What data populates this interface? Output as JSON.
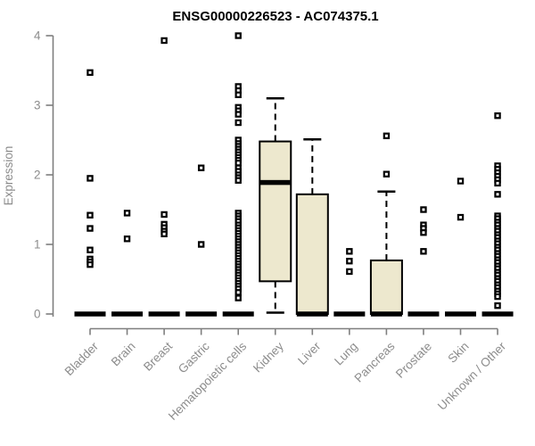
{
  "chart_data": {
    "type": "boxplot",
    "title": "ENSG00000226523 - AC074375.1",
    "xlabel": "",
    "ylabel": "Expression",
    "ylim": [
      0,
      4
    ],
    "yticks": [
      0,
      1,
      2,
      3,
      4
    ],
    "grid": false,
    "legend": "none",
    "marker_style": "open-square",
    "box_fill_color": "#ede8ce",
    "box_border_color": "#000000",
    "axis_color": "#7f7f7f",
    "label_color": "#8c8c8c",
    "title_color": "#000000",
    "categories": [
      "Bladder",
      "Brain",
      "Breast",
      "Gastric",
      "Hematopoietic cells",
      "Kidney",
      "Liver",
      "Lung",
      "Pancreas",
      "Prostate",
      "Skin",
      "Unknown / Other"
    ],
    "boxes": [
      {
        "category": "Bladder",
        "q1": 0,
        "median": 0,
        "q3": 0,
        "whisker_low": 0,
        "whisker_high": 0,
        "outliers": [
          3.47,
          1.95,
          1.42,
          1.23,
          0.92,
          0.79,
          0.75,
          0.71
        ]
      },
      {
        "category": "Brain",
        "q1": 0,
        "median": 0,
        "q3": 0,
        "whisker_low": 0,
        "whisker_high": 0,
        "outliers": [
          1.45,
          1.08
        ]
      },
      {
        "category": "Breast",
        "q1": 0,
        "median": 0,
        "q3": 0,
        "whisker_low": 0,
        "whisker_high": 0,
        "outliers": [
          3.93,
          1.43,
          1.29,
          1.24,
          1.19,
          1.15
        ]
      },
      {
        "category": "Gastric",
        "q1": 0,
        "median": 0,
        "q3": 0,
        "whisker_low": 0,
        "whisker_high": 0,
        "outliers": [
          2.1,
          1.0
        ]
      },
      {
        "category": "Hematopoietic cells",
        "q1": 0,
        "median": 0,
        "q3": 0,
        "whisker_low": 0,
        "whisker_high": 0,
        "outliers": [
          4.0,
          3.27,
          3.21,
          3.15,
          2.97,
          2.92,
          2.87,
          2.75,
          2.5,
          2.45,
          2.41,
          2.37,
          2.33,
          2.29,
          2.25,
          2.21,
          2.17,
          2.1,
          2.05,
          2.0,
          1.96,
          1.92,
          1.45,
          1.41,
          1.37,
          1.33,
          1.28,
          1.24,
          1.2,
          1.16,
          1.12,
          1.08,
          1.04,
          1.0,
          0.96,
          0.92,
          0.88,
          0.84,
          0.8,
          0.76,
          0.72,
          0.68,
          0.64,
          0.6,
          0.56,
          0.52,
          0.48,
          0.44,
          0.4,
          0.36,
          0.31,
          0.23
        ]
      },
      {
        "category": "Kidney",
        "q1": 0.47,
        "median": 1.89,
        "q3": 2.48,
        "whisker_low": 0.02,
        "whisker_high": 3.1,
        "outliers": []
      },
      {
        "category": "Liver",
        "q1": 0,
        "median": 0,
        "q3": 1.72,
        "whisker_low": 0,
        "whisker_high": 2.51,
        "outliers": []
      },
      {
        "category": "Lung",
        "q1": 0,
        "median": 0,
        "q3": 0,
        "whisker_low": 0,
        "whisker_high": 0,
        "outliers": [
          0.9,
          0.76,
          0.61
        ]
      },
      {
        "category": "Pancreas",
        "q1": 0,
        "median": 0,
        "q3": 0.77,
        "whisker_low": 0,
        "whisker_high": 1.76,
        "outliers": [
          2.56,
          2.01
        ]
      },
      {
        "category": "Prostate",
        "q1": 0,
        "median": 0,
        "q3": 0,
        "whisker_low": 0,
        "whisker_high": 0,
        "outliers": [
          1.5,
          1.28,
          1.23,
          1.17,
          0.9
        ]
      },
      {
        "category": "Skin",
        "q1": 0,
        "median": 0,
        "q3": 0,
        "whisker_low": 0,
        "whisker_high": 0,
        "outliers": [
          1.91,
          1.39
        ]
      },
      {
        "category": "Unknown / Other",
        "q1": 0,
        "median": 0,
        "q3": 0,
        "whisker_low": 0,
        "whisker_high": 0,
        "outliers": [
          2.85,
          2.13,
          2.08,
          2.03,
          1.98,
          1.93,
          1.88,
          1.72,
          1.41,
          1.37,
          1.32,
          1.28,
          1.23,
          1.19,
          1.14,
          1.1,
          1.05,
          1.01,
          0.96,
          0.92,
          0.87,
          0.83,
          0.78,
          0.74,
          0.69,
          0.65,
          0.6,
          0.56,
          0.51,
          0.47,
          0.42,
          0.38,
          0.33,
          0.29,
          0.25,
          0.12
        ]
      }
    ]
  }
}
